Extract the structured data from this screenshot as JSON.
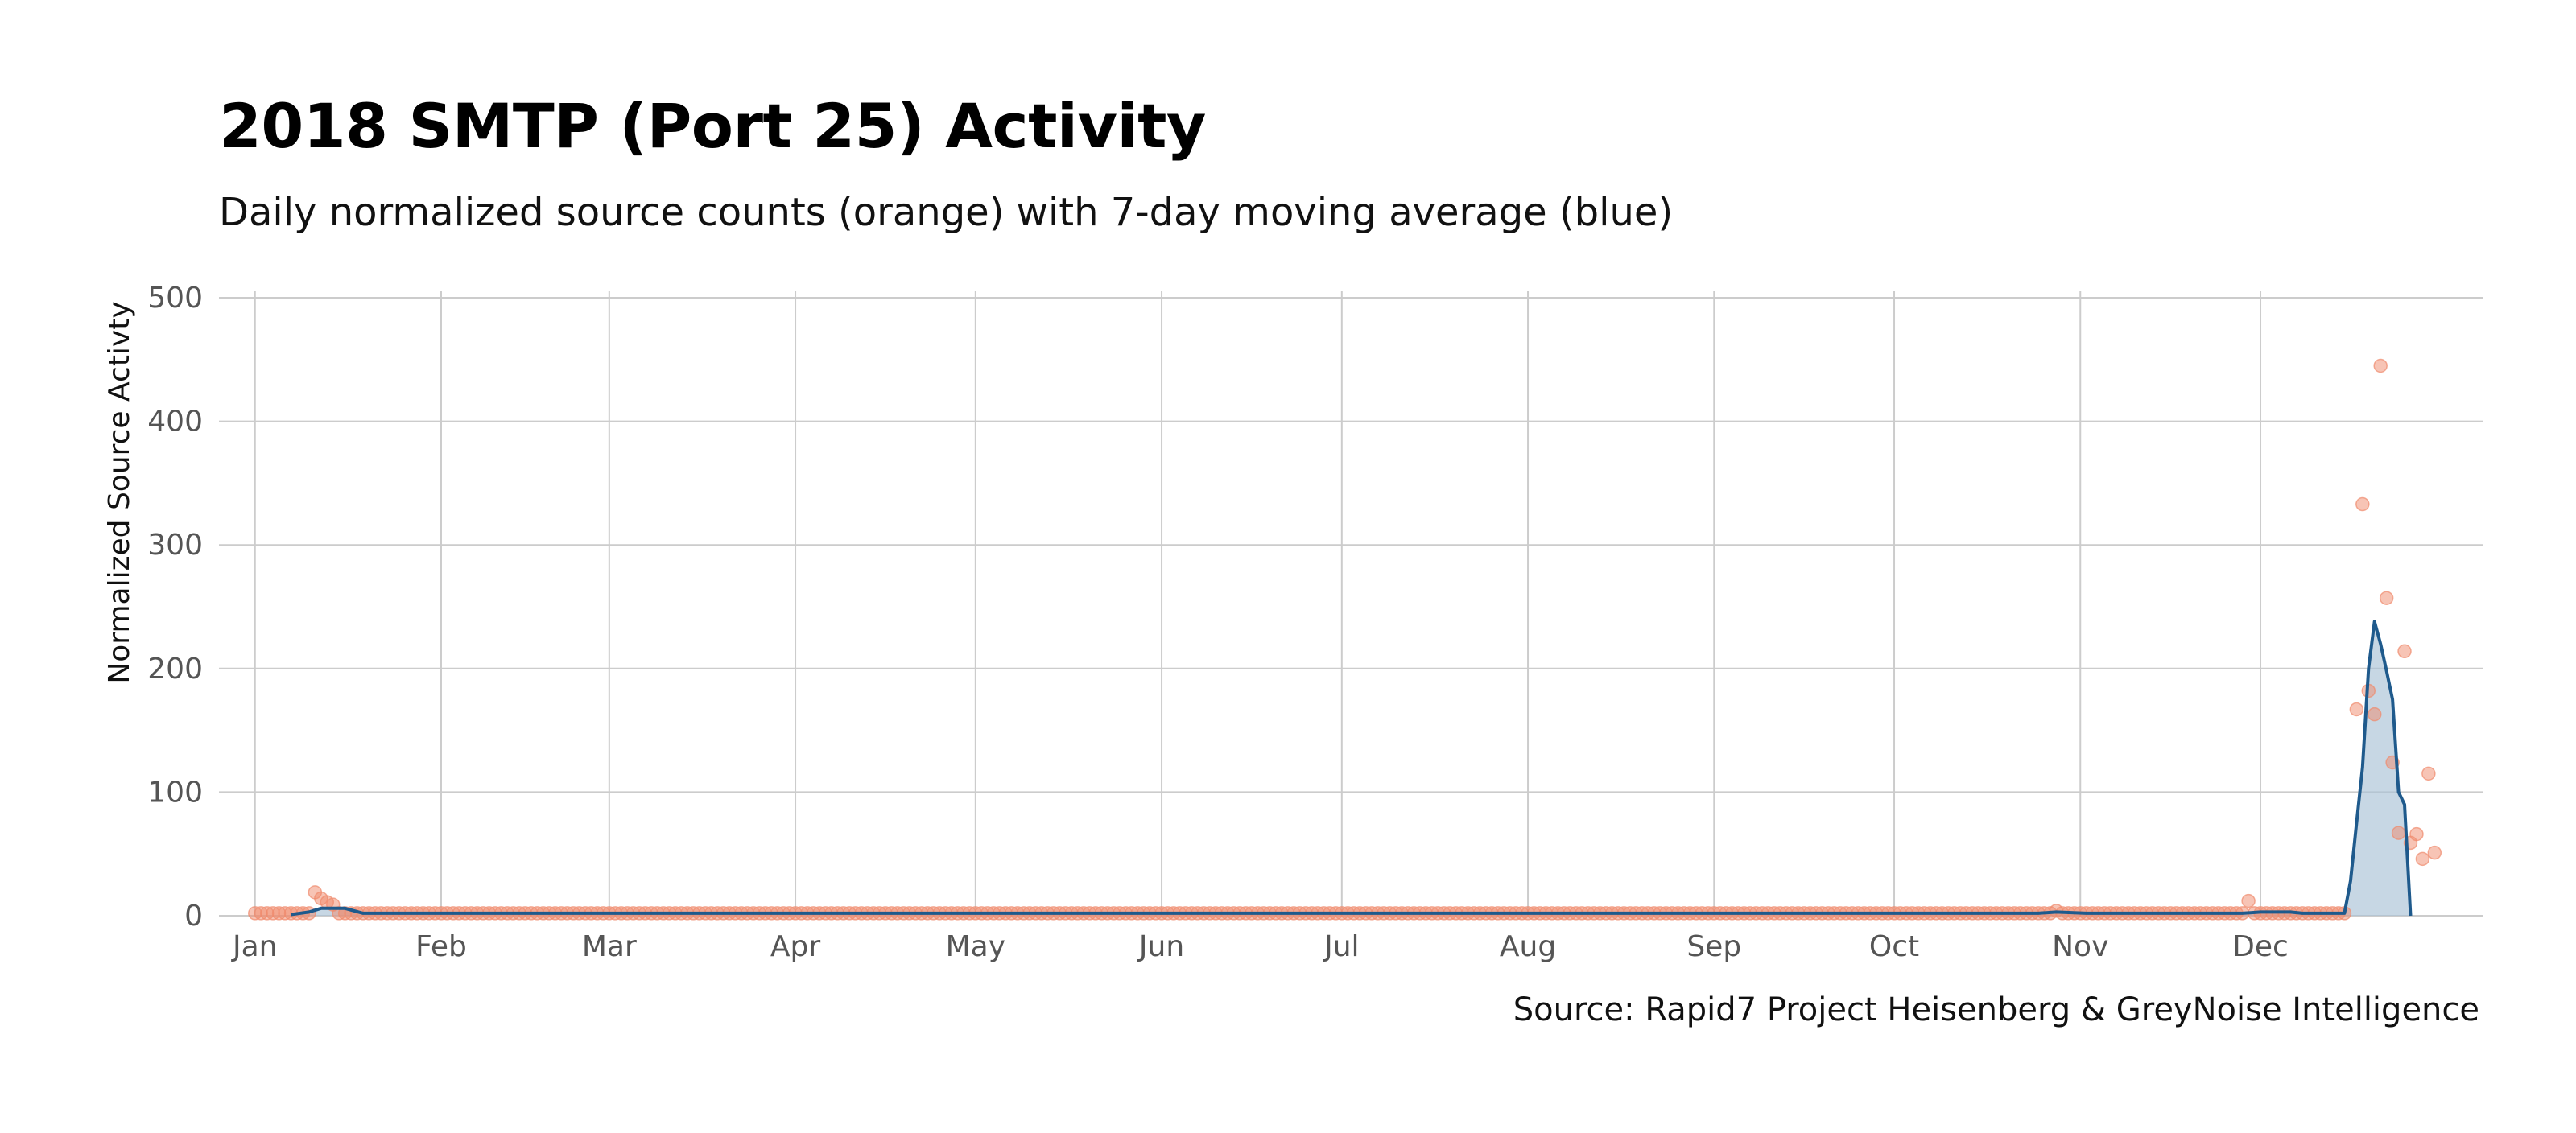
{
  "chart_data": {
    "type": "scatter",
    "title": "2018 SMTP (Port 25) Activity",
    "subtitle": "Daily normalized source counts (orange) with 7-day moving average (blue)",
    "ylabel": "Normalized Source Activty",
    "caption": "Source: Rapid7 Project Heisenberg & GreyNoise Intelligence",
    "x_range": [
      "2017-12-26",
      "2019-01-07"
    ],
    "ylim": [
      0,
      500
    ],
    "yticks": [
      0,
      100,
      200,
      300,
      400,
      500
    ],
    "xticks": [
      {
        "date": "2018-01-01",
        "label": "Jan"
      },
      {
        "date": "2018-02-01",
        "label": "Feb"
      },
      {
        "date": "2018-03-01",
        "label": "Mar"
      },
      {
        "date": "2018-04-01",
        "label": "Apr"
      },
      {
        "date": "2018-05-01",
        "label": "May"
      },
      {
        "date": "2018-06-01",
        "label": "Jun"
      },
      {
        "date": "2018-07-01",
        "label": "Jul"
      },
      {
        "date": "2018-08-01",
        "label": "Aug"
      },
      {
        "date": "2018-09-01",
        "label": "Sep"
      },
      {
        "date": "2018-10-01",
        "label": "Oct"
      },
      {
        "date": "2018-11-01",
        "label": "Nov"
      },
      {
        "date": "2018-12-01",
        "label": "Dec"
      }
    ],
    "grid": true,
    "colors": {
      "points": "#F08A6C",
      "average_line": "#1F5A8C",
      "average_fill": "#A9C2D6",
      "grid": "#CCCCCC"
    },
    "daily_counts": {
      "baseline": {
        "start": "2018-01-01",
        "end": "2018-12-15",
        "value": 2
      },
      "points": [
        {
          "date": "2018-01-11",
          "y": 19
        },
        {
          "date": "2018-01-12",
          "y": 14
        },
        {
          "date": "2018-01-13",
          "y": 11
        },
        {
          "date": "2018-01-14",
          "y": 9
        },
        {
          "date": "2018-10-28",
          "y": 4
        },
        {
          "date": "2018-11-29",
          "y": 12
        },
        {
          "date": "2018-12-17",
          "y": 167
        },
        {
          "date": "2018-12-18",
          "y": 333
        },
        {
          "date": "2018-12-19",
          "y": 182
        },
        {
          "date": "2018-12-20",
          "y": 163
        },
        {
          "date": "2018-12-21",
          "y": 445
        },
        {
          "date": "2018-12-22",
          "y": 257
        },
        {
          "date": "2018-12-23",
          "y": 124
        },
        {
          "date": "2018-12-24",
          "y": 67
        },
        {
          "date": "2018-12-25",
          "y": 214
        },
        {
          "date": "2018-12-26",
          "y": 59
        },
        {
          "date": "2018-12-27",
          "y": 66
        },
        {
          "date": "2018-12-28",
          "y": 46
        },
        {
          "date": "2018-12-29",
          "y": 115
        },
        {
          "date": "2018-12-30",
          "y": 51
        }
      ]
    },
    "moving_average": [
      {
        "date": "2018-01-07",
        "y": 1
      },
      {
        "date": "2018-01-10",
        "y": 3
      },
      {
        "date": "2018-01-12",
        "y": 6
      },
      {
        "date": "2018-01-16",
        "y": 6
      },
      {
        "date": "2018-01-19",
        "y": 2
      },
      {
        "date": "2018-10-25",
        "y": 2
      },
      {
        "date": "2018-10-28",
        "y": 3
      },
      {
        "date": "2018-11-02",
        "y": 2
      },
      {
        "date": "2018-11-28",
        "y": 2
      },
      {
        "date": "2018-12-01",
        "y": 3
      },
      {
        "date": "2018-12-06",
        "y": 3
      },
      {
        "date": "2018-12-08",
        "y": 2
      },
      {
        "date": "2018-12-15",
        "y": 2
      },
      {
        "date": "2018-12-16",
        "y": 28
      },
      {
        "date": "2018-12-17",
        "y": 75
      },
      {
        "date": "2018-12-18",
        "y": 120
      },
      {
        "date": "2018-12-19",
        "y": 200
      },
      {
        "date": "2018-12-20",
        "y": 238
      },
      {
        "date": "2018-12-21",
        "y": 220
      },
      {
        "date": "2018-12-22",
        "y": 198
      },
      {
        "date": "2018-12-23",
        "y": 175
      },
      {
        "date": "2018-12-24",
        "y": 100
      },
      {
        "date": "2018-12-25",
        "y": 90
      },
      {
        "date": "2018-12-26",
        "y": 0
      }
    ]
  }
}
